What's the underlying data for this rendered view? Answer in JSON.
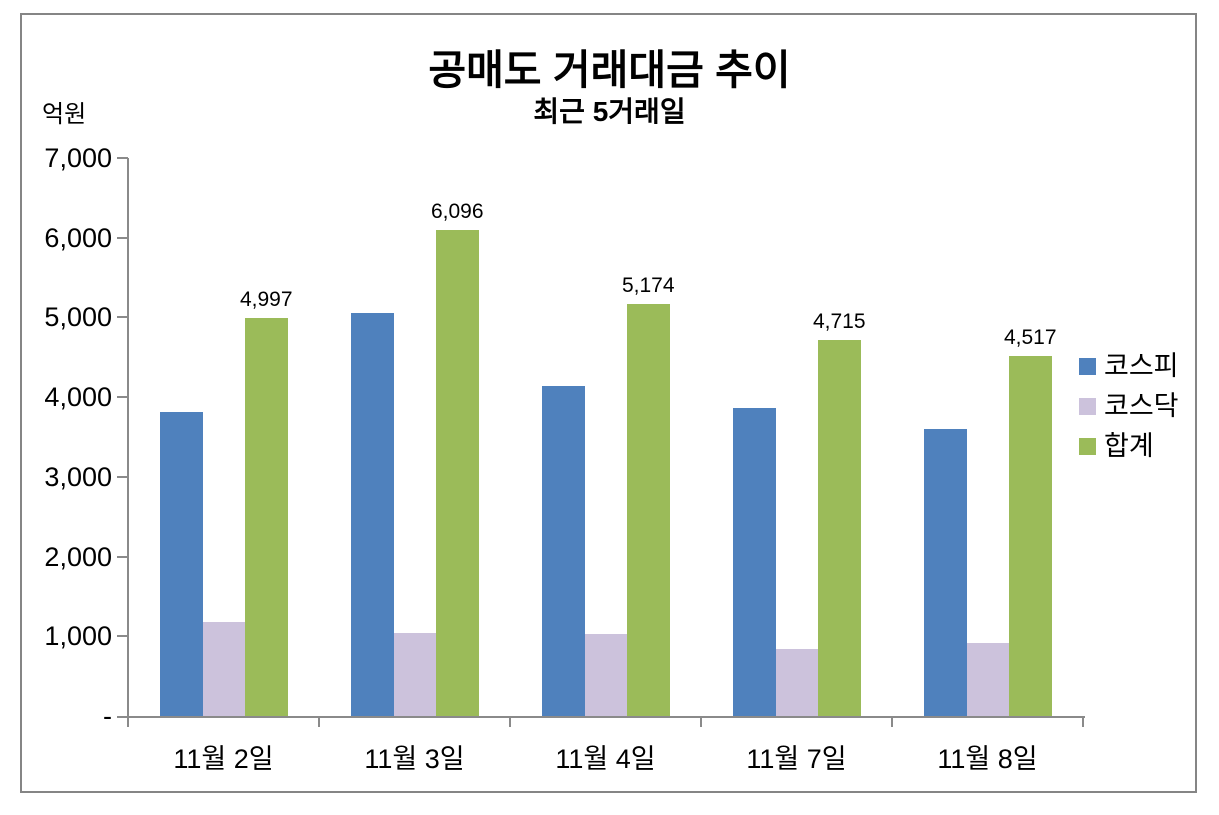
{
  "chart_data": {
    "type": "bar",
    "title": "공매도 거래대금 추이",
    "subtitle": "최근 5거래일",
    "ylabel": "억원",
    "xlabel": "",
    "ylim": [
      0,
      7000
    ],
    "grid": false,
    "legend_position": "right",
    "plot_background": "#ffffff",
    "axis_color": "#8a8a8a",
    "categories": [
      "11월 2일",
      "11월 3일",
      "11월 4일",
      "11월 7일",
      "11월 8일"
    ],
    "series": [
      {
        "id": "kospi",
        "name": "코스피",
        "color": "#4F81BD",
        "values": [
          3817,
          5061,
          4140,
          3870,
          3597
        ]
      },
      {
        "id": "kosdaq",
        "name": "코스닥",
        "color": "#CCC2DC",
        "values": [
          1180,
          1035,
          1034,
          845,
          920
        ]
      },
      {
        "id": "total",
        "name": "합계",
        "color": "#9BBB59",
        "values": [
          4997,
          6096,
          5174,
          4715,
          4517
        ],
        "data_labels": [
          "4,997",
          "6,096",
          "5,174",
          "4,715",
          "4,517"
        ]
      }
    ],
    "y_ticks": [
      {
        "value": 7000,
        "label": "7,000"
      },
      {
        "value": 6000,
        "label": "6,000"
      },
      {
        "value": 5000,
        "label": "5,000"
      },
      {
        "value": 4000,
        "label": "4,000"
      },
      {
        "value": 3000,
        "label": "3,000"
      },
      {
        "value": 2000,
        "label": "2,000"
      },
      {
        "value": 1000,
        "label": "1,000"
      },
      {
        "value": 0,
        "label": "-"
      }
    ]
  }
}
